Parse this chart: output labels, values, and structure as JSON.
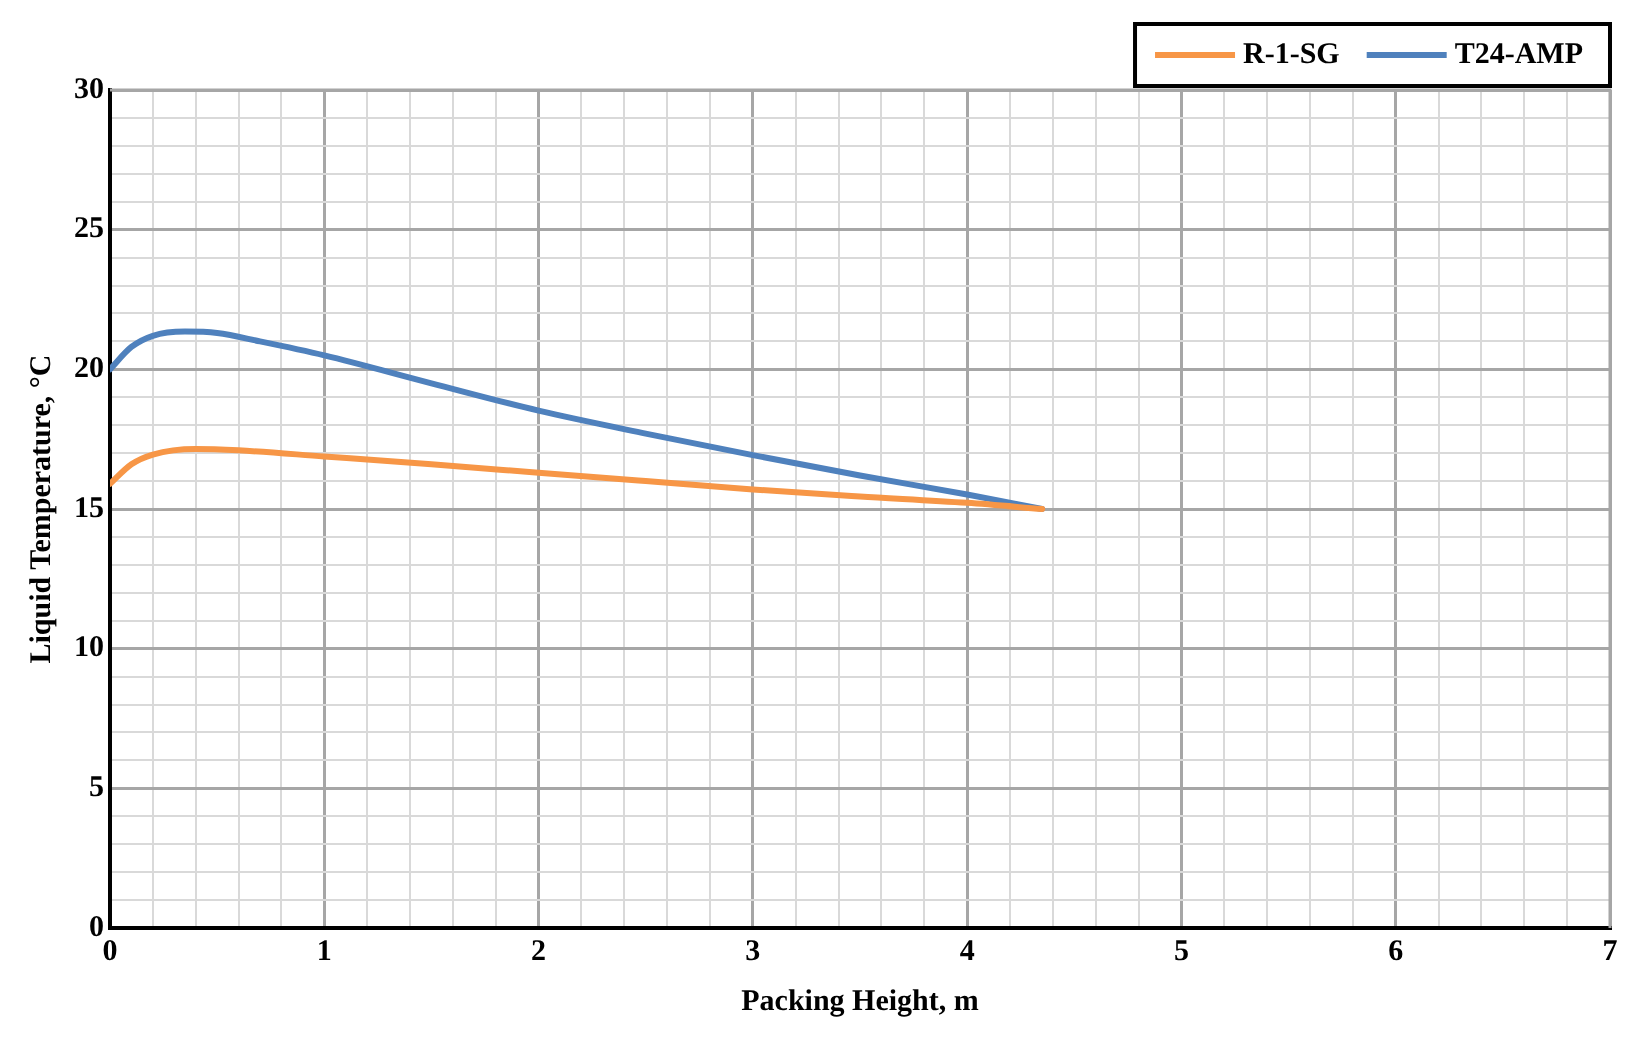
{
  "chart_data": {
    "type": "line",
    "xlabel": "Packing Height, m",
    "ylabel": "Liquid Temperature, °C",
    "xlim": [
      0,
      7
    ],
    "ylim": [
      0,
      30
    ],
    "xticks": [
      0,
      {
        "value": 0.2,
        "label": null
      },
      {
        "value": 0.4,
        "label": null
      },
      {
        "value": 0.6,
        "label": null
      },
      {
        "value": 0.8,
        "label": null
      },
      1,
      {
        "value": 1.2,
        "label": null
      },
      {
        "value": 1.4,
        "label": null
      },
      {
        "value": 1.6,
        "label": null
      },
      {
        "value": 1.8,
        "label": null
      },
      2,
      {
        "value": 2.2,
        "label": null
      },
      {
        "value": 2.4,
        "label": null
      },
      {
        "value": 2.6,
        "label": null
      },
      {
        "value": 2.8,
        "label": null
      },
      3,
      {
        "value": 3.2,
        "label": null
      },
      {
        "value": 3.4,
        "label": null
      },
      {
        "value": 3.6,
        "label": null
      },
      {
        "value": 3.8,
        "label": null
      },
      4,
      {
        "value": 4.2,
        "label": null
      },
      {
        "value": 4.4,
        "label": null
      },
      {
        "value": 4.6,
        "label": null
      },
      {
        "value": 4.8,
        "label": null
      },
      5,
      {
        "value": 5.2,
        "label": null
      },
      {
        "value": 5.4,
        "label": null
      },
      {
        "value": 5.6,
        "label": null
      },
      {
        "value": 5.8,
        "label": null
      },
      6,
      {
        "value": 6.2,
        "label": null
      },
      {
        "value": 6.4,
        "label": null
      },
      {
        "value": 6.6,
        "label": null
      },
      {
        "value": 6.8,
        "label": null
      },
      7
    ],
    "yticks": [
      0,
      {
        "value": 1,
        "label": null
      },
      {
        "value": 2,
        "label": null
      },
      {
        "value": 3,
        "label": null
      },
      {
        "value": 4,
        "label": null
      },
      5,
      {
        "value": 6,
        "label": null
      },
      {
        "value": 7,
        "label": null
      },
      {
        "value": 8,
        "label": null
      },
      {
        "value": 9,
        "label": null
      },
      10,
      {
        "value": 11,
        "label": null
      },
      {
        "value": 12,
        "label": null
      },
      {
        "value": 13,
        "label": null
      },
      {
        "value": 14,
        "label": null
      },
      15,
      {
        "value": 16,
        "label": null
      },
      {
        "value": 17,
        "label": null
      },
      {
        "value": 18,
        "label": null
      },
      {
        "value": 19,
        "label": null
      },
      20,
      {
        "value": 21,
        "label": null
      },
      {
        "value": 22,
        "label": null
      },
      {
        "value": 23,
        "label": null
      },
      {
        "value": 24,
        "label": null
      },
      25,
      {
        "value": 26,
        "label": null
      },
      {
        "value": 27,
        "label": null
      },
      {
        "value": 28,
        "label": null
      },
      {
        "value": 29,
        "label": null
      },
      30
    ],
    "grid": true,
    "legend": "top right",
    "marker": "none",
    "line_style": "solid",
    "series": [
      {
        "name": "R-1-SG",
        "color": "#f79646",
        "x": [
          0,
          0.1,
          0.2,
          0.4,
          0.6,
          1,
          1.5,
          2,
          2.5,
          3,
          3.5,
          4,
          4.35
        ],
        "values": [
          15.9,
          16.6,
          16.95,
          17.15,
          17.1,
          16.88,
          16.6,
          16.3,
          16.0,
          15.7,
          15.45,
          15.22,
          15.0
        ]
      },
      {
        "name": "T24-AMP",
        "color": "#4f81bd",
        "x": [
          0,
          0.1,
          0.2,
          0.35,
          0.5,
          0.7,
          1,
          1.5,
          2,
          2.5,
          3,
          3.5,
          4,
          4.35
        ],
        "values": [
          20.0,
          20.8,
          21.2,
          21.35,
          21.3,
          21.0,
          20.5,
          19.5,
          18.52,
          17.7,
          16.93,
          16.2,
          15.52,
          15.0
        ]
      }
    ]
  }
}
